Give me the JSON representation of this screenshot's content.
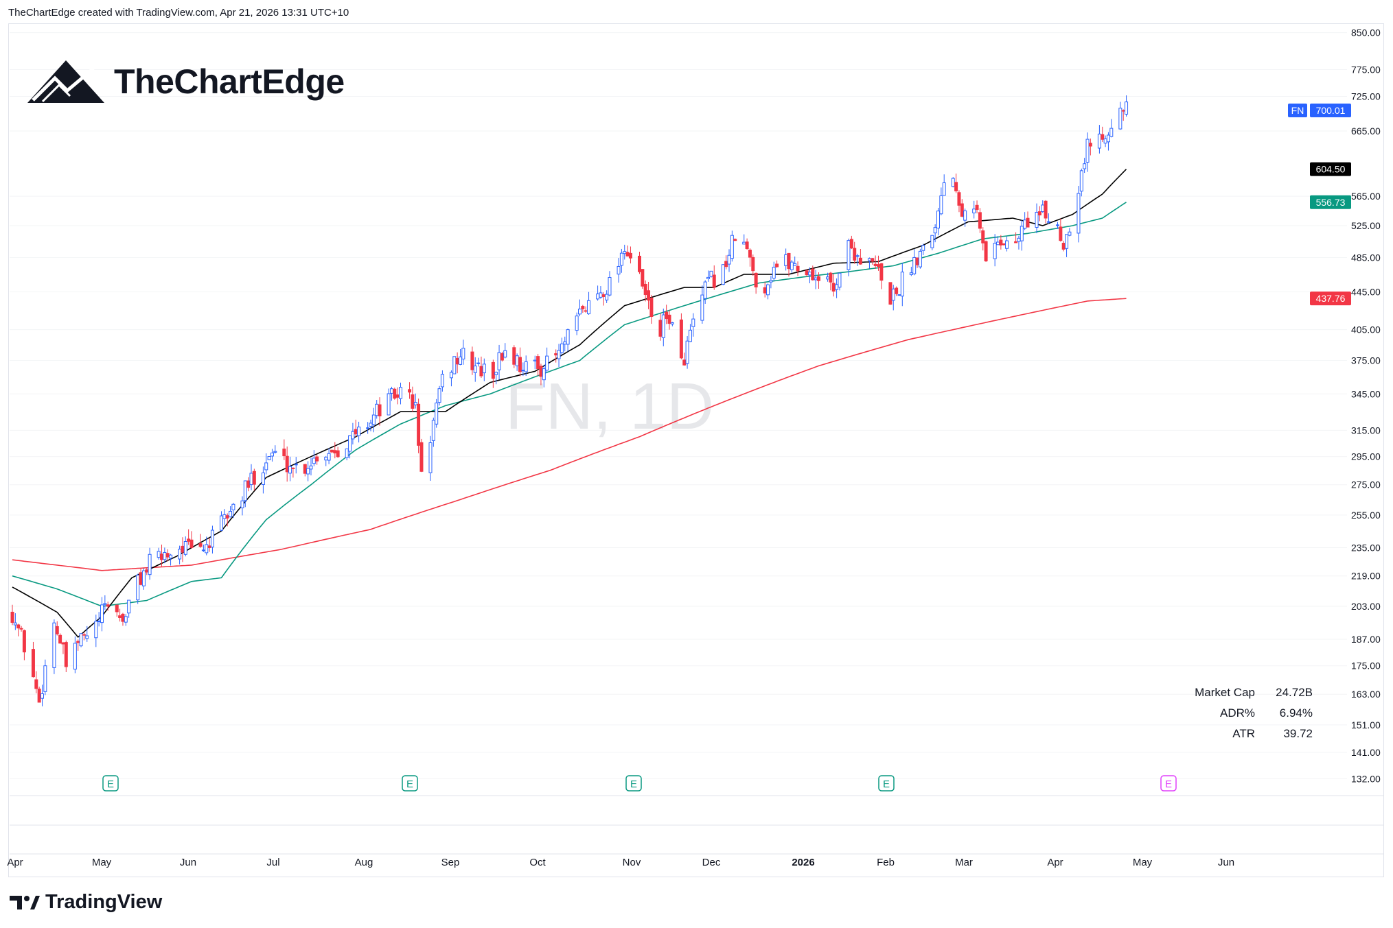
{
  "header": {
    "attribution": "TheChartEdge created with TradingView.com, Apr 21, 2026 13:31 UTC+10"
  },
  "brand": {
    "name": "TheChartEdge"
  },
  "footer": {
    "brand": "TradingView"
  },
  "chart_data": {
    "type": "candlestick",
    "symbol": "FN",
    "interval": "1D",
    "watermark": "FN, 1D",
    "y_scale": "log",
    "ylim": [
      127,
      870
    ],
    "y_ticks": [
      850,
      775,
      725,
      665,
      565,
      525,
      485,
      445,
      405,
      375,
      345,
      315,
      295,
      275,
      255,
      235,
      219,
      203,
      187,
      175,
      163,
      151,
      141,
      132
    ],
    "y_tick_labels": [
      "850.00",
      "775.00",
      "725.00",
      "665.00",
      "565.00",
      "525.00",
      "485.00",
      "445.00",
      "405.00",
      "375.00",
      "345.00",
      "315.00",
      "295.00",
      "275.00",
      "255.00",
      "235.00",
      "219.00",
      "203.00",
      "187.00",
      "175.00",
      "163.00",
      "151.00",
      "141.00",
      "132.00"
    ],
    "x_labels": [
      "Apr",
      "May",
      "Jun",
      "Jul",
      "Aug",
      "Sep",
      "Oct",
      "Nov",
      "Dec",
      "2026",
      "Feb",
      "Mar",
      "Apr",
      "May",
      "Jun"
    ],
    "price_badges": [
      {
        "symbol": "FN",
        "value": "700.01",
        "color": "#2962ff"
      },
      {
        "value": "604.50",
        "color": "#000000"
      },
      {
        "value": "556.73",
        "color": "#089981"
      },
      {
        "value": "437.76",
        "color": "#f23645"
      }
    ],
    "stats": [
      {
        "label": "Market Cap",
        "value": "24.72B"
      },
      {
        "label": "ADR%",
        "value": "6.94%"
      },
      {
        "label": "ATR",
        "value": "39.72"
      }
    ],
    "earnings_markers": [
      {
        "label": "E",
        "color": "#089981"
      },
      {
        "label": "E",
        "color": "#089981"
      },
      {
        "label": "E",
        "color": "#089981"
      },
      {
        "label": "E",
        "color": "#089981"
      },
      {
        "label": "E",
        "color": "#e040fb"
      }
    ],
    "colors": {
      "up": "#2962ff",
      "down": "#f23645",
      "sma_short": "#000000",
      "sma_mid": "#089981",
      "sma_long": "#f23645"
    },
    "close_waypoints": [
      [
        0,
        200
      ],
      [
        5,
        180
      ],
      [
        9,
        160
      ],
      [
        14,
        196
      ],
      [
        19,
        170
      ],
      [
        22,
        186
      ],
      [
        27,
        190
      ],
      [
        32,
        205
      ],
      [
        37,
        196
      ],
      [
        42,
        216
      ],
      [
        47,
        228
      ],
      [
        52,
        232
      ],
      [
        57,
        236
      ],
      [
        62,
        232
      ],
      [
        67,
        240
      ],
      [
        72,
        255
      ],
      [
        77,
        268
      ],
      [
        82,
        285
      ],
      [
        87,
        298
      ],
      [
        92,
        290
      ],
      [
        97,
        286
      ],
      [
        102,
        296
      ],
      [
        107,
        300
      ],
      [
        112,
        306
      ],
      [
        117,
        316
      ],
      [
        122,
        330
      ],
      [
        127,
        342
      ],
      [
        132,
        350
      ],
      [
        135,
        332
      ],
      [
        137,
        280
      ],
      [
        140,
        310
      ],
      [
        145,
        365
      ],
      [
        150,
        380
      ],
      [
        155,
        370
      ],
      [
        160,
        360
      ],
      [
        165,
        385
      ],
      [
        170,
        372
      ],
      [
        175,
        368
      ],
      [
        180,
        372
      ],
      [
        185,
        390
      ],
      [
        190,
        420
      ],
      [
        195,
        440
      ],
      [
        200,
        455
      ],
      [
        205,
        500
      ],
      [
        209,
        468
      ],
      [
        212,
        440
      ],
      [
        216,
        400
      ],
      [
        220,
        420
      ],
      [
        224,
        370
      ],
      [
        228,
        410
      ],
      [
        233,
        455
      ],
      [
        238,
        470
      ],
      [
        243,
        520
      ],
      [
        247,
        480
      ],
      [
        251,
        440
      ],
      [
        255,
        475
      ],
      [
        260,
        480
      ],
      [
        265,
        470
      ],
      [
        270,
        462
      ],
      [
        275,
        450
      ],
      [
        280,
        500
      ],
      [
        285,
        480
      ],
      [
        290,
        470
      ],
      [
        292,
        435
      ],
      [
        296,
        445
      ],
      [
        300,
        470
      ],
      [
        305,
        500
      ],
      [
        310,
        540
      ],
      [
        313,
        625
      ],
      [
        318,
        550
      ],
      [
        322,
        560
      ],
      [
        326,
        480
      ],
      [
        330,
        510
      ],
      [
        335,
        495
      ],
      [
        340,
        535
      ],
      [
        345,
        540
      ],
      [
        350,
        525
      ],
      [
        352,
        500
      ],
      [
        356,
        560
      ],
      [
        360,
        640
      ],
      [
        365,
        660
      ],
      [
        369,
        690
      ],
      [
        373,
        700
      ]
    ],
    "sma_short_waypoints": [
      [
        0,
        213
      ],
      [
        15,
        200
      ],
      [
        22,
        188
      ],
      [
        30,
        198
      ],
      [
        40,
        218
      ],
      [
        55,
        230
      ],
      [
        70,
        245
      ],
      [
        85,
        280
      ],
      [
        100,
        295
      ],
      [
        115,
        310
      ],
      [
        130,
        330
      ],
      [
        145,
        330
      ],
      [
        160,
        355
      ],
      [
        175,
        365
      ],
      [
        190,
        390
      ],
      [
        205,
        430
      ],
      [
        225,
        450
      ],
      [
        235,
        450
      ],
      [
        245,
        465
      ],
      [
        260,
        465
      ],
      [
        275,
        478
      ],
      [
        290,
        480
      ],
      [
        305,
        500
      ],
      [
        320,
        530
      ],
      [
        335,
        535
      ],
      [
        345,
        525
      ],
      [
        355,
        540
      ],
      [
        365,
        568
      ],
      [
        373,
        604.5
      ]
    ],
    "sma_mid_waypoints": [
      [
        0,
        219
      ],
      [
        15,
        212
      ],
      [
        30,
        203
      ],
      [
        45,
        206
      ],
      [
        60,
        216
      ],
      [
        70,
        218
      ],
      [
        85,
        252
      ],
      [
        100,
        275
      ],
      [
        115,
        300
      ],
      [
        130,
        320
      ],
      [
        145,
        335
      ],
      [
        160,
        345
      ],
      [
        175,
        360
      ],
      [
        190,
        375
      ],
      [
        205,
        410
      ],
      [
        220,
        425
      ],
      [
        235,
        440
      ],
      [
        250,
        455
      ],
      [
        265,
        462
      ],
      [
        280,
        468
      ],
      [
        295,
        475
      ],
      [
        310,
        490
      ],
      [
        325,
        508
      ],
      [
        340,
        515
      ],
      [
        355,
        525
      ],
      [
        365,
        535
      ],
      [
        373,
        556.73
      ]
    ],
    "sma_long_waypoints": [
      [
        0,
        228
      ],
      [
        30,
        222
      ],
      [
        60,
        225
      ],
      [
        90,
        234
      ],
      [
        120,
        246
      ],
      [
        150,
        265
      ],
      [
        180,
        285
      ],
      [
        210,
        310
      ],
      [
        240,
        340
      ],
      [
        270,
        370
      ],
      [
        300,
        395
      ],
      [
        330,
        415
      ],
      [
        360,
        435
      ],
      [
        373,
        437.76
      ]
    ]
  }
}
